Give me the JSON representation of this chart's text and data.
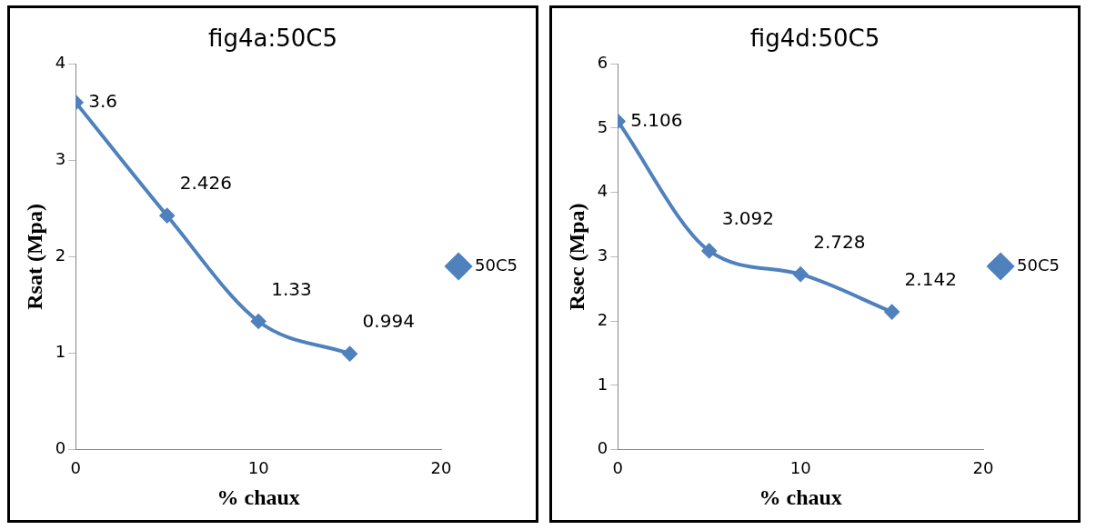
{
  "chart_data": [
    {
      "type": "line",
      "title": "fig4a:50C5",
      "xlabel": "% chaux",
      "ylabel": "Rsat (Mpa)",
      "x": [
        0,
        5,
        10,
        15
      ],
      "series": [
        {
          "name": "50C5",
          "color": "#4f81bd",
          "values": [
            3.6,
            2.426,
            1.33,
            0.994
          ]
        }
      ],
      "xlim": [
        0,
        20
      ],
      "xticks": [
        0,
        10,
        20
      ],
      "ylim": [
        0,
        4
      ],
      "yticks": [
        0,
        1,
        2,
        3,
        4
      ],
      "data_labels": true,
      "legend": "right",
      "marker": "diamond",
      "grid": false
    },
    {
      "type": "line",
      "title": "fig4d:50C5",
      "xlabel": "% chaux",
      "ylabel": "Rsec (Mpa)",
      "x": [
        0,
        5,
        10,
        15
      ],
      "series": [
        {
          "name": "50C5",
          "color": "#4f81bd",
          "values": [
            5.106,
            3.092,
            2.728,
            2.142
          ]
        }
      ],
      "xlim": [
        0,
        20
      ],
      "xticks": [
        0,
        10,
        20
      ],
      "ylim": [
        0,
        6
      ],
      "yticks": [
        0,
        1,
        2,
        3,
        4,
        5,
        6
      ],
      "data_labels": true,
      "legend": "right",
      "marker": "diamond",
      "grid": false
    }
  ]
}
